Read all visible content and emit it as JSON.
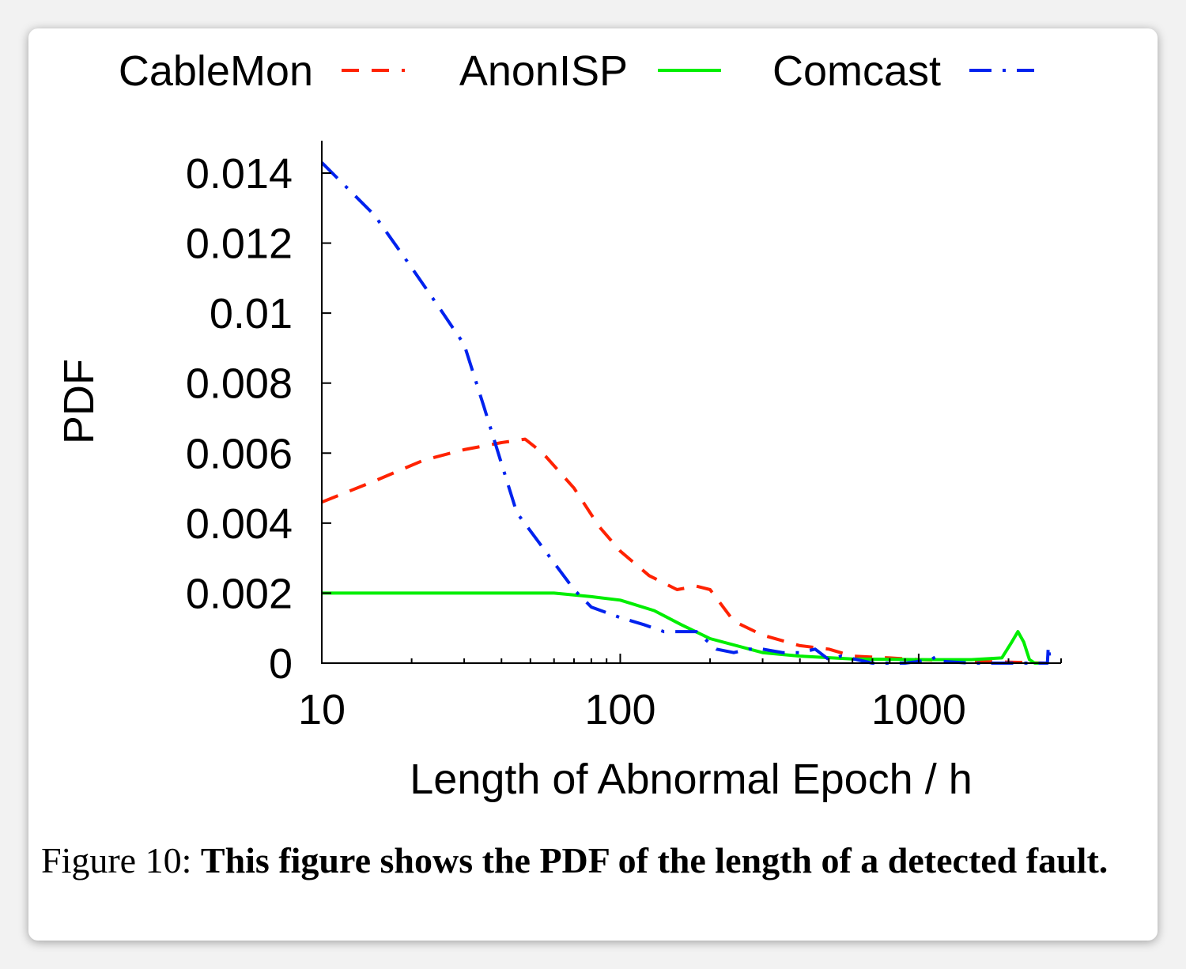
{
  "chart_data": {
    "type": "line",
    "xlabel": "Length of Abnormal Epoch / h",
    "ylabel": "PDF",
    "xscale": "log",
    "xlim": [
      10,
      3000
    ],
    "ylim": [
      0,
      0.015
    ],
    "xticks": [
      10,
      100,
      1000
    ],
    "xtick_labels": [
      "10",
      "100",
      "1000"
    ],
    "yticks": [
      0,
      0.002,
      0.004,
      0.006,
      0.008,
      0.01,
      0.012,
      0.014
    ],
    "ytick_labels": [
      "0",
      "0.002",
      "0.004",
      "0.006",
      "0.008",
      "0.01",
      "0.012",
      "0.014"
    ],
    "grid": false,
    "legend_position": "top",
    "series": [
      {
        "name": "CableMon",
        "color": "#ff2200",
        "dash": "dashed",
        "x": [
          10,
          15,
          22,
          30,
          40,
          48,
          55,
          70,
          85,
          100,
          125,
          155,
          180,
          200,
          240,
          300,
          400,
          500,
          600,
          800,
          1000,
          1500,
          2000,
          2700
        ],
        "y": [
          0.0046,
          0.0052,
          0.0058,
          0.0061,
          0.0063,
          0.0064,
          0.006,
          0.005,
          0.0039,
          0.0032,
          0.0025,
          0.0021,
          0.0022,
          0.0021,
          0.0012,
          0.0008,
          0.0005,
          0.0004,
          0.0002,
          0.00015,
          0.0001,
          5e-05,
          3e-05,
          0.0
        ]
      },
      {
        "name": "AnonISP",
        "color": "#00ee00",
        "dash": "solid",
        "x": [
          10,
          20,
          40,
          60,
          80,
          100,
          130,
          160,
          200,
          300,
          400,
          600,
          1000,
          1500,
          1900,
          2050,
          2150,
          2250,
          2350,
          2450,
          2600
        ],
        "y": [
          0.002,
          0.002,
          0.002,
          0.002,
          0.0019,
          0.0018,
          0.0015,
          0.0011,
          0.0007,
          0.0003,
          0.0002,
          0.00012,
          0.0001,
          0.0001,
          0.00015,
          0.0006,
          0.0009,
          0.0006,
          0.0001,
          0.0,
          0.0
        ]
      },
      {
        "name": "Comcast",
        "color": "#0022ee",
        "dash": "dash-dot",
        "x": [
          10,
          15,
          20,
          25,
          30,
          35,
          40,
          45,
          55,
          70,
          80,
          100,
          120,
          140,
          160,
          180,
          210,
          240,
          270,
          300,
          350,
          400,
          450,
          500,
          550,
          700,
          900,
          1000,
          1100,
          1150,
          1200,
          1500,
          1800,
          2100,
          2500,
          2700,
          2720,
          2760,
          2800
        ],
        "y": [
          0.0143,
          0.0128,
          0.0113,
          0.0101,
          0.0091,
          0.0073,
          0.0057,
          0.0043,
          0.0033,
          0.0021,
          0.0016,
          0.0013,
          0.0011,
          0.0009,
          0.0009,
          0.0009,
          0.0004,
          0.0003,
          0.0004,
          0.0004,
          0.0003,
          0.0003,
          0.0004,
          0.0001,
          0.0002,
          0.0,
          0.0,
          5e-05,
          0.0001,
          0.0002,
          5e-05,
          0.0,
          0.0,
          0.0,
          0.0,
          0.0,
          0.0005,
          0.0,
          0.0
        ]
      }
    ]
  },
  "caption": {
    "label": "Figure 10:",
    "text": "This figure shows the PDF of the length of a detected fault."
  }
}
